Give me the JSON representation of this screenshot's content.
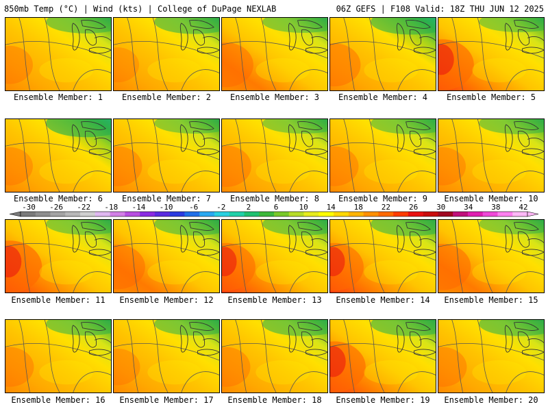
{
  "header": {
    "left": "850mb Temp (°C) | Wind (kts) | College of DuPage NEXLAB",
    "right": "06Z GEFS | F108 Valid: 18Z THU JUN 12 2025"
  },
  "colorbar": {
    "labels": [
      "-30",
      "-26",
      "-22",
      "-18",
      "-14",
      "-10",
      "-6",
      "-2",
      "2",
      "6",
      "10",
      "14",
      "18",
      "22",
      "26",
      "30",
      "34",
      "38",
      "42"
    ],
    "colors": [
      "#7a7a7a",
      "#8e8e8e",
      "#a3a3a3",
      "#b8b8b8",
      "#cfcfcf",
      "#e0b8f0",
      "#d27fe6",
      "#b84ee0",
      "#8a2be2",
      "#5a2be0",
      "#2b3be0",
      "#1f6fe8",
      "#29a8f0",
      "#28d0e0",
      "#20d0a8",
      "#1fc070",
      "#3cb83a",
      "#78c828",
      "#b6dc28",
      "#e6ec1e",
      "#ffff00",
      "#ffd800",
      "#ffb400",
      "#ff9000",
      "#ff6a00",
      "#ff3c00",
      "#e81010",
      "#c80c0c",
      "#a00820",
      "#c0107a",
      "#e020b0",
      "#f048d8",
      "#ff80f0",
      "#ffb8f8"
    ]
  },
  "panels": [
    {
      "label": "Ensemble Member: 1",
      "warm": 0.35,
      "cool": 0.4
    },
    {
      "label": "Ensemble Member: 2",
      "warm": 0.25,
      "cool": 0.45
    },
    {
      "label": "Ensemble Member: 3",
      "warm": 0.55,
      "cool": 0.35
    },
    {
      "label": "Ensemble Member: 4",
      "warm": 0.5,
      "cool": 0.5
    },
    {
      "label": "Ensemble Member: 5",
      "warm": 0.75,
      "cool": 0.3
    },
    {
      "label": "Ensemble Member: 6",
      "warm": 0.35,
      "cool": 0.6
    },
    {
      "label": "Ensemble Member: 7",
      "warm": 0.4,
      "cool": 0.3
    },
    {
      "label": "Ensemble Member: 8",
      "warm": 0.45,
      "cool": 0.3
    },
    {
      "label": "Ensemble Member: 9",
      "warm": 0.4,
      "cool": 0.35
    },
    {
      "label": "Ensemble Member: 10",
      "warm": 0.35,
      "cool": 0.35
    },
    {
      "label": "Ensemble Member: 11",
      "warm": 0.8,
      "cool": 0.35
    },
    {
      "label": "Ensemble Member: 12",
      "warm": 0.55,
      "cool": 0.4
    },
    {
      "label": "Ensemble Member: 13",
      "warm": 0.65,
      "cool": 0.4
    },
    {
      "label": "Ensemble Member: 14",
      "warm": 0.65,
      "cool": 0.45
    },
    {
      "label": "Ensemble Member: 15",
      "warm": 0.6,
      "cool": 0.3
    },
    {
      "label": "Ensemble Member: 16",
      "warm": 0.4,
      "cool": 0.4
    },
    {
      "label": "Ensemble Member: 17",
      "warm": 0.3,
      "cool": 0.4
    },
    {
      "label": "Ensemble Member: 18",
      "warm": 0.4,
      "cool": 0.45
    },
    {
      "label": "Ensemble Member: 19",
      "warm": 0.75,
      "cool": 0.45
    },
    {
      "label": "Ensemble Member: 20",
      "warm": 0.4,
      "cool": 0.45
    }
  ]
}
